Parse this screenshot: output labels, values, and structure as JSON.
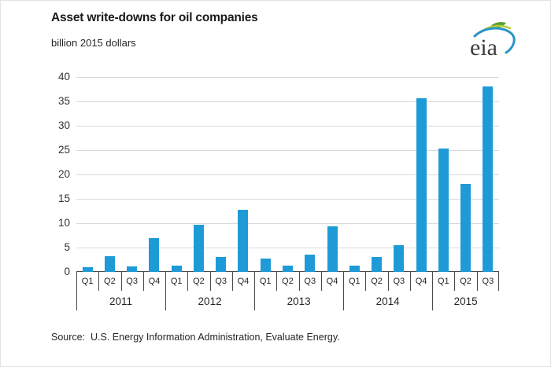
{
  "header": {
    "title": "Asset write-downs for oil companies",
    "subtitle": "billion 2015 dollars",
    "logo_text": "eia"
  },
  "source_line": "Source:  U.S. Energy Information Administration, Evaluate Energy.",
  "colors": {
    "bar": "#1e9bd7",
    "gridline": "#d9d9d9",
    "axis_line": "#4a4a4a",
    "text": "#262626",
    "logo_green": "#5a9e36",
    "logo_lime": "#b5cc34",
    "logo_blue": "#2a93c9"
  },
  "chart_data": {
    "type": "bar",
    "title": "Asset write-downs for oil companies",
    "ylabel": "billion 2015 dollars",
    "xlabel": "",
    "ylim": [
      0,
      40
    ],
    "yticks": [
      0,
      5,
      10,
      15,
      20,
      25,
      30,
      35,
      40
    ],
    "grid": true,
    "legend": false,
    "groups": [
      {
        "year": "2011",
        "quarters": [
          "Q1",
          "Q2",
          "Q3",
          "Q4"
        ],
        "values": [
          0.9,
          3.2,
          1.2,
          6.9
        ]
      },
      {
        "year": "2012",
        "quarters": [
          "Q1",
          "Q2",
          "Q3",
          "Q4"
        ],
        "values": [
          1.3,
          9.6,
          3.1,
          12.7
        ]
      },
      {
        "year": "2013",
        "quarters": [
          "Q1",
          "Q2",
          "Q3",
          "Q4"
        ],
        "values": [
          2.8,
          1.3,
          3.6,
          9.4
        ]
      },
      {
        "year": "2014",
        "quarters": [
          "Q1",
          "Q2",
          "Q3",
          "Q4"
        ],
        "values": [
          1.3,
          3.1,
          5.5,
          35.7
        ]
      },
      {
        "year": "2015",
        "quarters": [
          "Q1",
          "Q2",
          "Q3"
        ],
        "values": [
          25.3,
          18.1,
          38.1
        ]
      }
    ]
  }
}
